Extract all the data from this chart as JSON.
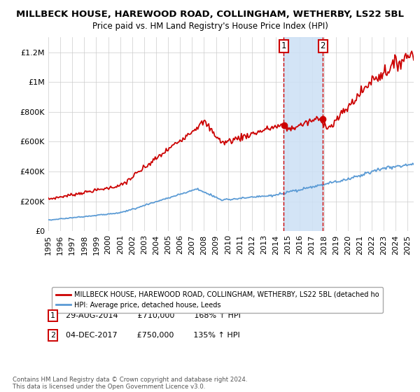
{
  "title": "MILLBECK HOUSE, HAREWOOD ROAD, COLLINGHAM, WETHERBY, LS22 5BL",
  "subtitle": "Price paid vs. HM Land Registry's House Price Index (HPI)",
  "sale1_year": 2014.66,
  "sale1_price": 710000,
  "sale1_date_str": "29-AUG-2014",
  "sale1_pct": "168% ↑ HPI",
  "sale2_year": 2017.92,
  "sale2_price": 750000,
  "sale2_date_str": "04-DEC-2017",
  "sale2_pct": "135% ↑ HPI",
  "legend_line1": "MILLBECK HOUSE, HAREWOOD ROAD, COLLINGHAM, WETHERBY, LS22 5BL (detached ho",
  "legend_line2": "HPI: Average price, detached house, Leeds",
  "footer": "Contains HM Land Registry data © Crown copyright and database right 2024.\nThis data is licensed under the Open Government Licence v3.0.",
  "red_color": "#cc0000",
  "blue_color": "#5b9bd5",
  "shade_color": "#cce0f5",
  "ylim": [
    0,
    1300000
  ],
  "xlim_start": 1995.0,
  "xlim_end": 2025.5
}
